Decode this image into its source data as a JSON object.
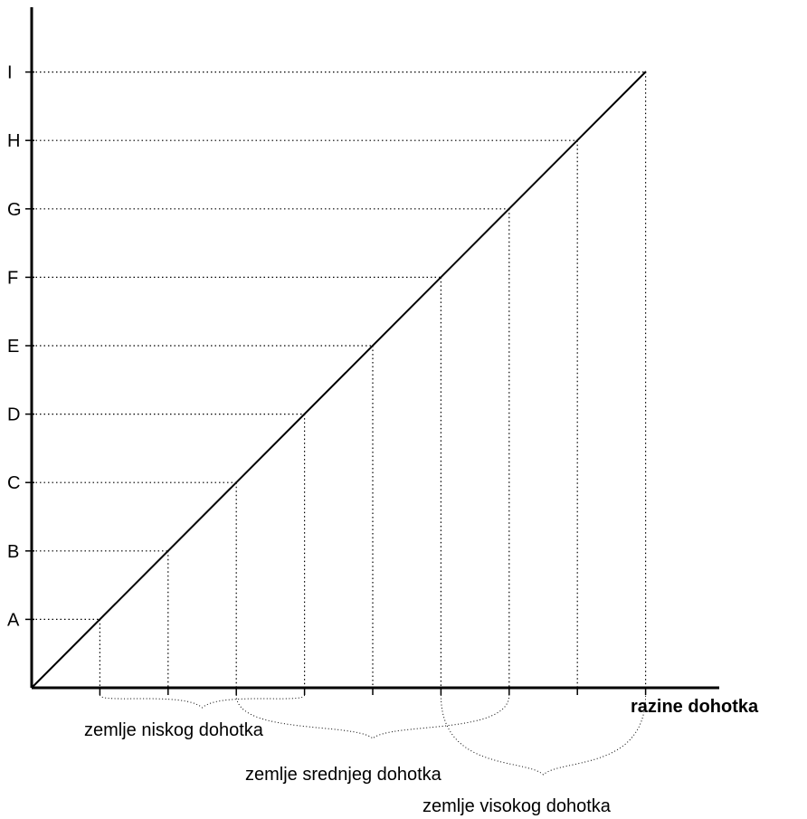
{
  "y_levels": [
    "A",
    "B",
    "C",
    "D",
    "E",
    "F",
    "G",
    "H",
    "I"
  ],
  "x_axis_label": "razine dohotka",
  "groups": [
    {
      "label": "zemlje niskog dohotka",
      "from_level": "A",
      "to_level": "D"
    },
    {
      "label": "zemlje srednjeg dohotka",
      "from_level": "C",
      "to_level": "G"
    },
    {
      "label": "zemlje visokog dohotka",
      "from_level": "F",
      "to_level": "I"
    }
  ]
}
